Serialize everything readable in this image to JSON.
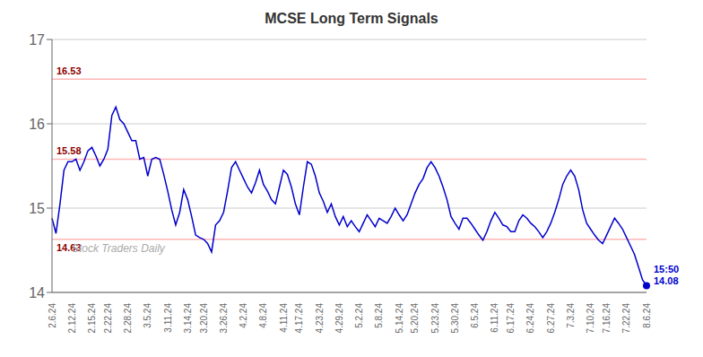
{
  "chart_data": {
    "type": "line",
    "title": "MCSE Long Term Signals",
    "categories": [
      "2.6.24",
      null,
      null,
      null,
      null,
      "2.12.24",
      null,
      null,
      null,
      null,
      "2.15.24",
      null,
      null,
      null,
      "2.22.24",
      null,
      null,
      null,
      null,
      "2.28.24",
      null,
      null,
      null,
      null,
      "3.5.24",
      null,
      null,
      null,
      null,
      "3.11.24",
      null,
      null,
      null,
      null,
      "3.14.24",
      null,
      null,
      null,
      "3.20.24",
      null,
      null,
      null,
      null,
      "3.26.24",
      null,
      null,
      null,
      null,
      "4.2.24",
      null,
      null,
      null,
      null,
      "4.8.24",
      null,
      null,
      null,
      null,
      "4.11.24",
      null,
      null,
      null,
      "4.17.24",
      null,
      null,
      null,
      null,
      "4.23.24",
      null,
      null,
      null,
      null,
      "4.29.24",
      null,
      null,
      null,
      null,
      "5.2.24",
      null,
      null,
      null,
      null,
      "5.8.24",
      null,
      null,
      null,
      null,
      "5.14.24",
      null,
      null,
      null,
      "5.20.24",
      null,
      null,
      null,
      null,
      "5.23.24",
      null,
      null,
      null,
      null,
      "5.30.24",
      null,
      null,
      null,
      null,
      "6.5.24",
      null,
      null,
      null,
      null,
      "6.11.24",
      null,
      null,
      null,
      "6.17.24",
      null,
      null,
      null,
      null,
      "6.24.24",
      null,
      null,
      null,
      null,
      "6.27.24",
      null,
      null,
      null,
      null,
      "7.3.24",
      null,
      null,
      null,
      null,
      "7.10.24",
      null,
      null,
      null,
      "7.16.24",
      null,
      null,
      null,
      null,
      "7.22.24",
      null,
      null,
      null,
      null,
      "8.6.24"
    ],
    "values": [
      14.88,
      14.7,
      15.05,
      15.45,
      15.55,
      15.55,
      15.58,
      15.45,
      15.55,
      15.68,
      15.72,
      15.62,
      15.5,
      15.58,
      15.7,
      16.1,
      16.2,
      16.05,
      16.0,
      15.9,
      15.8,
      15.8,
      15.58,
      15.6,
      15.38,
      15.58,
      15.6,
      15.58,
      15.4,
      15.2,
      14.98,
      14.8,
      14.95,
      15.22,
      15.1,
      14.9,
      14.68,
      14.65,
      14.63,
      14.58,
      14.48,
      14.8,
      14.85,
      14.95,
      15.2,
      15.48,
      15.55,
      15.45,
      15.35,
      15.25,
      15.18,
      15.3,
      15.45,
      15.28,
      15.2,
      15.1,
      15.05,
      15.25,
      15.45,
      15.4,
      15.25,
      15.05,
      14.92,
      15.25,
      15.55,
      15.52,
      15.38,
      15.18,
      15.08,
      14.95,
      15.05,
      14.9,
      14.8,
      14.9,
      14.78,
      14.85,
      14.78,
      14.72,
      14.82,
      14.92,
      14.85,
      14.78,
      14.88,
      14.85,
      14.82,
      14.9,
      15.0,
      14.92,
      14.85,
      14.92,
      15.05,
      15.18,
      15.28,
      15.35,
      15.48,
      15.55,
      15.48,
      15.38,
      15.25,
      15.1,
      14.9,
      14.82,
      14.75,
      14.88,
      14.88,
      14.82,
      14.75,
      14.68,
      14.62,
      14.72,
      14.85,
      14.95,
      14.88,
      14.8,
      14.78,
      14.72,
      14.72,
      14.85,
      14.92,
      14.88,
      14.82,
      14.78,
      14.72,
      14.65,
      14.72,
      14.82,
      14.95,
      15.1,
      15.28,
      15.38,
      15.45,
      15.38,
      15.22,
      14.98,
      14.82,
      14.75,
      14.68,
      14.62,
      14.58,
      14.68,
      14.78,
      14.88,
      14.82,
      14.75,
      14.65,
      14.55,
      14.45,
      14.3,
      14.15,
      14.08
    ],
    "color": "#0000cc",
    "ylim": [
      14.0,
      17.0
    ],
    "yticks": [
      14,
      15,
      16,
      17
    ],
    "grid": true,
    "reference_lines": {
      "values": [
        16.53,
        15.58,
        14.63
      ],
      "color": "#ffb6b6",
      "label_color": "#8b0000"
    },
    "annotations": [
      "Stock Traders Daily"
    ],
    "last_label": {
      "text": "15:50",
      "value": 14.08
    }
  }
}
